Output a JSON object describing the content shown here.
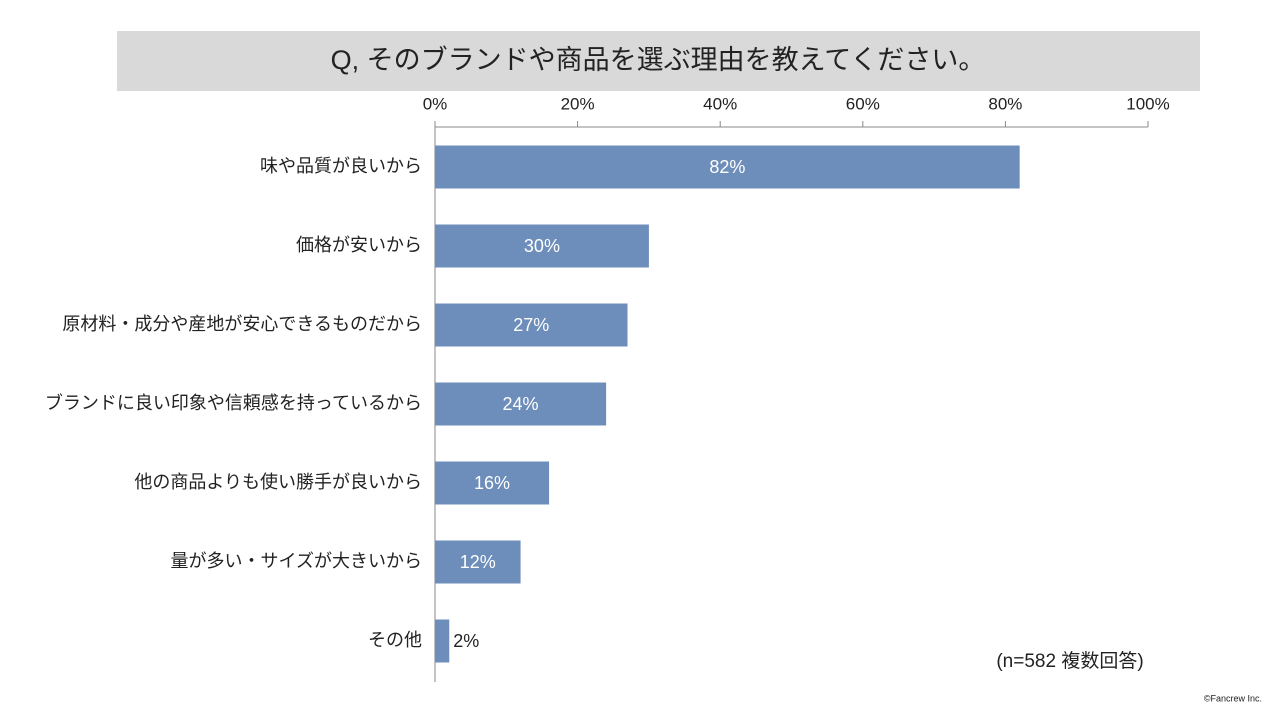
{
  "chart_data": {
    "type": "hbar",
    "title": "Q, そのブランドや商品を選ぶ理由を教えてください。",
    "categories": [
      "味や品質が良いから",
      "価格が安いから",
      "原材料・成分や産地が安心できるものだから",
      "ブランドに良い印象や信頼感を持っているから",
      "他の商品よりも使い勝手が良いから",
      "量が多い・サイズが大きいから",
      "その他"
    ],
    "values": [
      82,
      30,
      27,
      24,
      16,
      12,
      2
    ],
    "value_labels": [
      "82%",
      "30%",
      "27%",
      "24%",
      "16%",
      "12%",
      "2%"
    ],
    "color": "#6d8dba",
    "xlim": [
      0,
      100
    ],
    "xticks": [
      {
        "value": 0,
        "label": "0%"
      },
      {
        "value": 20,
        "label": "20%"
      },
      {
        "value": 40,
        "label": "40%"
      },
      {
        "value": 60,
        "label": "60%"
      },
      {
        "value": 80,
        "label": "80%"
      },
      {
        "value": 100,
        "label": "100%"
      }
    ],
    "annotation": "(n=582 複数回答)",
    "credit": "©Fancrew Inc."
  }
}
